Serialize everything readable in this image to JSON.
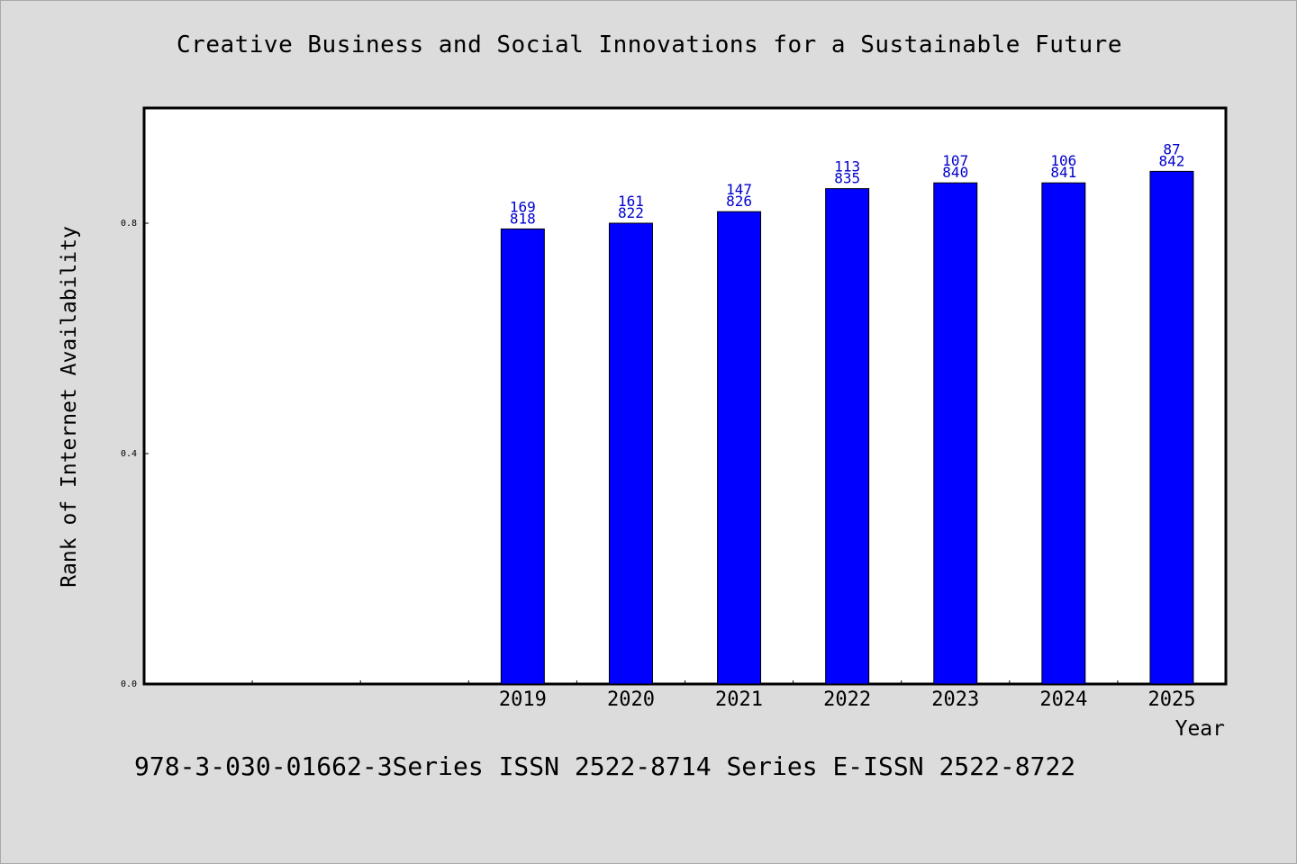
{
  "title": "Creative Business and Social Innovations for a Sustainable Future",
  "footer": "978-3-030-01662-3Series ISSN 2522-8714 Series E-ISSN 2522-8722",
  "colors": {
    "bar": "#0000ff",
    "label": "#0000cc",
    "background": "#dcdcdc",
    "plot": "#ffffff"
  },
  "chart_data": {
    "type": "bar",
    "title": "Creative Business and Social Innovations for a Sustainable Future",
    "xlabel": "Year",
    "ylabel": "Rank of Internet Availability",
    "ylim": [
      0,
      1.0
    ],
    "yticks": [
      "0.0",
      "0.4",
      "0.8"
    ],
    "ytick_values": [
      0.0,
      0.4,
      0.8
    ],
    "categories": [
      "",
      "",
      "",
      "2019",
      "2020",
      "2021",
      "2022",
      "2023",
      "2024",
      "2025"
    ],
    "values": [
      null,
      null,
      null,
      0.79,
      0.8,
      0.82,
      0.86,
      0.87,
      0.87,
      0.89
    ],
    "labels_top": [
      "",
      "",
      "",
      "169",
      "161",
      "147",
      "113",
      "107",
      "106",
      "87"
    ],
    "labels_bottom": [
      "",
      "",
      "",
      "818",
      "822",
      "826",
      "835",
      "840",
      "841",
      "842"
    ],
    "grid": false,
    "legend": "none"
  }
}
